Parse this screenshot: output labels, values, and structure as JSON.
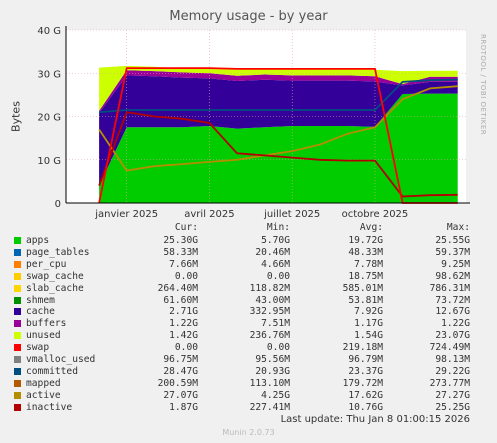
{
  "title": "Memory usage - by year",
  "side_text": "RRDTOOL / TOBI OETIKER",
  "columns": {
    "cur": "Cur:",
    "min": "Min:",
    "avg": "Avg:",
    "max": "Max:"
  },
  "legend": [
    {
      "name": "apps",
      "color": "#00cc00",
      "cur": "25.30G",
      "min": "5.70G",
      "avg": "19.72G",
      "max": "25.55G"
    },
    {
      "name": "page_tables",
      "color": "#0066b3",
      "cur": "58.33M",
      "min": "20.46M",
      "avg": "48.33M",
      "max": "59.37M"
    },
    {
      "name": "per_cpu",
      "color": "#ff8000",
      "cur": "7.66M",
      "min": "4.66M",
      "avg": "7.78M",
      "max": "9.25M"
    },
    {
      "name": "swap_cache",
      "color": "#ffcc00",
      "cur": "0.00",
      "min": "0.00",
      "avg": "18.75M",
      "max": "98.62M"
    },
    {
      "name": "slab_cache",
      "color": "#ffd500",
      "cur": "264.40M",
      "min": "118.82M",
      "avg": "585.01M",
      "max": "786.31M"
    },
    {
      "name": "shmem",
      "color": "#008f00",
      "cur": "61.60M",
      "min": "43.00M",
      "avg": "53.81M",
      "max": "73.72M"
    },
    {
      "name": "cache",
      "color": "#330099",
      "cur": "2.71G",
      "min": "332.95M",
      "avg": "7.92G",
      "max": "12.67G"
    },
    {
      "name": "buffers",
      "color": "#990099",
      "cur": "1.22G",
      "min": "7.51M",
      "avg": "1.17G",
      "max": "1.22G"
    },
    {
      "name": "unused",
      "color": "#ccff00",
      "cur": "1.42G",
      "min": "236.76M",
      "avg": "1.54G",
      "max": "23.07G"
    },
    {
      "name": "swap",
      "color": "#ff0000",
      "cur": "0.00",
      "min": "0.00",
      "avg": "219.18M",
      "max": "724.49M"
    },
    {
      "name": "vmalloc_used",
      "color": "#808080",
      "cur": "96.75M",
      "min": "95.56M",
      "avg": "96.79M",
      "max": "98.13M"
    },
    {
      "name": "committed",
      "color": "#004d80",
      "cur": "28.47G",
      "min": "20.93G",
      "avg": "23.37G",
      "max": "29.22G"
    },
    {
      "name": "mapped",
      "color": "#b35a00",
      "cur": "200.59M",
      "min": "113.10M",
      "avg": "179.72M",
      "max": "273.77M"
    },
    {
      "name": "active",
      "color": "#b38f00",
      "cur": "27.07G",
      "min": "4.25G",
      "avg": "17.62G",
      "max": "27.27G"
    },
    {
      "name": "inactive",
      "color": "#b30000",
      "cur": "1.87G",
      "min": "227.41M",
      "avg": "10.76G",
      "max": "25.25G"
    }
  ],
  "last_update": "Last update: Thu Jan  8 01:00:15 2026",
  "footer": "Munin 2.0.73",
  "chart_data": {
    "type": "area",
    "ylabel": "Bytes",
    "ylim": [
      0,
      40
    ],
    "y_ticks": [
      "0",
      "10 G",
      "20 G",
      "30 G",
      "40 G"
    ],
    "x_ticks": [
      "janvier 2025",
      "avril 2025",
      "juillet 2025",
      "octobre 2025"
    ],
    "grid": true,
    "x_months": [
      -1,
      0,
      1,
      2,
      3,
      4,
      5,
      6,
      7,
      8,
      9,
      10,
      11,
      12
    ],
    "stacks": {
      "apps": [
        4,
        17.5,
        17.5,
        17.5,
        17.8,
        17.2,
        17.5,
        17.8,
        17.8,
        17.8,
        17.6,
        25.2,
        25.3,
        25.3
      ],
      "cache": [
        16.8,
        12.0,
        11.8,
        11.5,
        11.0,
        11.0,
        11.0,
        10.5,
        10.5,
        10.5,
        10.5,
        2.0,
        2.7,
        2.7
      ],
      "buffers": [
        0.5,
        1.2,
        1.2,
        1.2,
        1.2,
        1.2,
        1.2,
        1.2,
        1.2,
        1.2,
        1.2,
        0.3,
        1.2,
        1.2
      ],
      "unused": [
        10,
        1.0,
        1.0,
        0.9,
        1.0,
        1.4,
        1.3,
        1.5,
        1.5,
        1.5,
        1.5,
        3.0,
        1.4,
        1.4
      ]
    },
    "lines": {
      "committed": [
        21,
        21.5,
        21.5,
        21.5,
        21.5,
        21.5,
        21.5,
        21.5,
        21.5,
        21.5,
        21.5,
        28.0,
        28.4,
        28.5
      ],
      "active": [
        17,
        7.5,
        8.5,
        9.0,
        9.5,
        10.0,
        11.0,
        12.0,
        13.5,
        16.0,
        17.5,
        24.0,
        26.5,
        27.0
      ],
      "inactive": [
        4,
        21.0,
        20.0,
        19.5,
        18.5,
        11.5,
        11.0,
        10.5,
        10.0,
        9.8,
        9.8,
        1.5,
        1.8,
        1.9
      ],
      "swap": [
        0,
        31.2,
        31.2,
        31.2,
        31.2,
        31.0,
        31.0,
        31.0,
        31.0,
        31.0,
        31.0,
        0,
        0,
        0
      ]
    }
  }
}
